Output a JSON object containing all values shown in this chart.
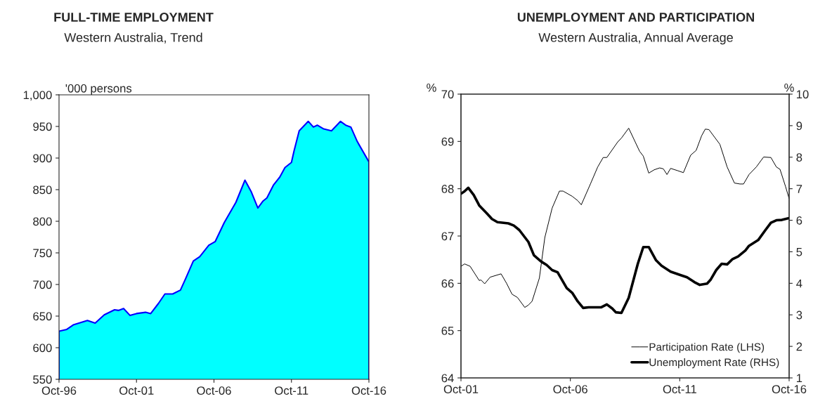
{
  "chart_data": [
    {
      "type": "area",
      "title": "FULL-TIME EMPLOYMENT",
      "subtitle": "Western Australia, Trend",
      "ylabel": "'000 persons",
      "x": [
        "1996-10",
        "1997-04",
        "1997-09",
        "1998-08",
        "1999-02",
        "1999-09",
        "2000-05",
        "2000-08",
        "2000-12",
        "2001-05",
        "2001-10",
        "2002-05",
        "2002-09",
        "2003-03",
        "2003-08",
        "2004-02",
        "2004-08",
        "2004-12",
        "2005-06",
        "2005-11",
        "2006-06",
        "2006-11",
        "2007-06",
        "2008-03",
        "2008-10",
        "2009-03",
        "2009-08",
        "2009-12",
        "2010-03",
        "2010-08",
        "2011-01",
        "2011-05",
        "2011-10",
        "2011-12",
        "2012-04",
        "2012-11",
        "2013-03",
        "2013-06",
        "2013-11",
        "2014-05",
        "2014-12",
        "2015-04",
        "2015-08",
        "2016-01",
        "2016-10"
      ],
      "series": [
        {
          "color": "#00ffff",
          "values": [
            626,
            629,
            636,
            643,
            639,
            652,
            660,
            659,
            662,
            651,
            654,
            656,
            654,
            670,
            685,
            685,
            691,
            709,
            737,
            744,
            762,
            768,
            798,
            830,
            865,
            846,
            821,
            832,
            837,
            857,
            870,
            885,
            893,
            911,
            943,
            958,
            949,
            952,
            946,
            943,
            958,
            952,
            949,
            926,
            894
          ]
        }
      ],
      "xlim": [
        "1996-10",
        "2016-10"
      ],
      "xticks": [
        {
          "value": "1996-10",
          "label": "Oct-96"
        },
        {
          "value": "2001-10",
          "label": "Oct-01"
        },
        {
          "value": "2006-10",
          "label": "Oct-06"
        },
        {
          "value": "2011-10",
          "label": "Oct-11"
        },
        {
          "value": "2016-10",
          "label": "Oct-16"
        }
      ],
      "ylim": [
        550,
        1000
      ],
      "yticks": [
        550,
        600,
        650,
        700,
        750,
        800,
        850,
        900,
        950,
        {
          "value": 1000,
          "label": "1,000"
        }
      ],
      "grid": false,
      "legend": false
    },
    {
      "type": "line",
      "title": "UNEMPLOYMENT AND PARTICIPATION",
      "subtitle": "Western Australia, Annual Average",
      "ylabel": "%",
      "y2label": "%",
      "series": [
        {
          "name": "Participation Rate (LHS)",
          "color": "#000000",
          "x": [
            "2001-10",
            "2001-12",
            "2002-03",
            "2002-08",
            "2002-09",
            "2002-11",
            "2003-02",
            "2003-08",
            "2003-11",
            "2004-02",
            "2004-05",
            "2004-09",
            "2004-11",
            "2005-01",
            "2005-05",
            "2005-08",
            "2005-12",
            "2006-04",
            "2006-06",
            "2006-11",
            "2007-02",
            "2007-04",
            "2007-09",
            "2008-01",
            "2008-04",
            "2008-06",
            "2008-12",
            "2009-02",
            "2009-06",
            "2009-12",
            "2010-02",
            "2010-05",
            "2010-08",
            "2010-11",
            "2011-01",
            "2011-03",
            "2011-05",
            "2011-09",
            "2011-12",
            "2012-04",
            "2012-07",
            "2012-10",
            "2012-12",
            "2013-02",
            "2013-08",
            "2013-12",
            "2014-04",
            "2014-07",
            "2014-09",
            "2014-12",
            "2015-04",
            "2015-08",
            "2015-12",
            "2016-03",
            "2016-05",
            "2016-08",
            "2016-10"
          ],
          "values": [
            66.36,
            66.41,
            66.36,
            66.06,
            66.07,
            65.99,
            66.13,
            66.2,
            66.0,
            65.77,
            65.7,
            65.49,
            65.54,
            65.62,
            66.11,
            66.97,
            67.59,
            67.95,
            67.95,
            67.84,
            67.75,
            67.66,
            68.1,
            68.46,
            68.66,
            68.66,
            68.99,
            69.07,
            69.28,
            68.79,
            68.69,
            68.33,
            68.4,
            68.44,
            68.42,
            68.3,
            68.43,
            68.38,
            68.34,
            68.71,
            68.81,
            69.12,
            69.26,
            69.25,
            68.94,
            68.46,
            68.12,
            68.1,
            68.1,
            68.3,
            68.46,
            68.67,
            68.66,
            68.46,
            68.41,
            68.05,
            67.79
          ]
        },
        {
          "name": "Unemployment Rate (RHS)",
          "color": "#000000",
          "axis": "y2",
          "x": [
            "2001-10",
            "2001-12",
            "2002-02",
            "2002-05",
            "2002-08",
            "2002-12",
            "2003-03",
            "2003-06",
            "2003-12",
            "2004-03",
            "2004-06",
            "2004-11",
            "2005-02",
            "2005-06",
            "2005-09",
            "2005-12",
            "2006-03",
            "2006-08",
            "2006-11",
            "2007-02",
            "2007-05",
            "2007-08",
            "2008-03",
            "2008-06",
            "2008-09",
            "2008-11",
            "2009-02",
            "2009-06",
            "2009-11",
            "2010-02",
            "2010-05",
            "2010-09",
            "2010-12",
            "2011-05",
            "2011-10",
            "2012-02",
            "2012-06",
            "2012-09",
            "2013-01",
            "2013-03",
            "2013-06",
            "2013-09",
            "2013-12",
            "2014-03",
            "2014-06",
            "2014-10",
            "2014-12",
            "2015-05",
            "2015-09",
            "2015-12",
            "2016-03",
            "2016-06",
            "2016-10"
          ],
          "values": [
            6.84,
            6.92,
            7.03,
            6.8,
            6.47,
            6.23,
            6.04,
            5.94,
            5.9,
            5.83,
            5.69,
            5.31,
            4.89,
            4.69,
            4.58,
            4.42,
            4.35,
            3.85,
            3.7,
            3.43,
            3.22,
            3.24,
            3.24,
            3.33,
            3.2,
            3.08,
            3.06,
            3.54,
            4.62,
            5.15,
            5.15,
            4.73,
            4.56,
            4.37,
            4.27,
            4.19,
            4.04,
            3.95,
            3.99,
            4.12,
            4.42,
            4.62,
            4.6,
            4.77,
            4.85,
            5.04,
            5.19,
            5.37,
            5.69,
            5.92,
            6.0,
            6.01,
            6.07
          ]
        }
      ],
      "xlim": [
        "2001-10",
        "2016-10"
      ],
      "xticks": [
        {
          "value": "2001-10",
          "label": "Oct-01"
        },
        {
          "value": "2006-10",
          "label": "Oct-06"
        },
        {
          "value": "2011-10",
          "label": "Oct-11"
        },
        {
          "value": "2016-10",
          "label": "Oct-16"
        }
      ],
      "ylim": [
        64,
        70
      ],
      "yticks": [
        64,
        65,
        66,
        67,
        68,
        69,
        70
      ],
      "y2lim": [
        1,
        10
      ],
      "y2ticks": [
        1,
        2,
        3,
        4,
        5,
        6,
        7,
        8,
        9,
        10
      ],
      "grid": false,
      "legend": "bottom right"
    }
  ]
}
